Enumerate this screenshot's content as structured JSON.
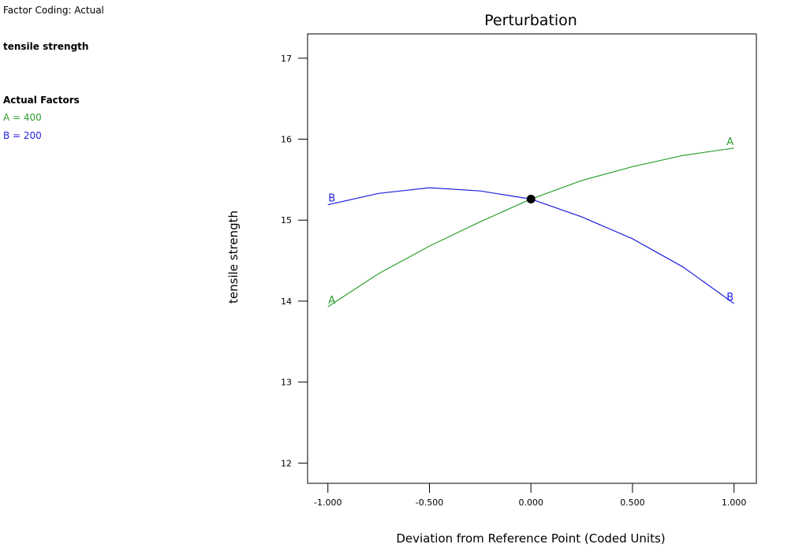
{
  "info_panel": {
    "factor_coding": "Factor Coding: Actual",
    "response": "tensile strength",
    "actual_factors_heading": "Actual Factors",
    "factor_a": "A = 400",
    "factor_b": "B = 200"
  },
  "colors": {
    "factor_a": "#2ca02c",
    "factor_b": "#1f1fdc",
    "axis": "#000000"
  },
  "chart_data": {
    "type": "line",
    "title": "Perturbation",
    "xlabel": "Deviation from Reference Point (Coded Units)",
    "ylabel": "tensile strength",
    "xlim": [
      -1.1,
      1.11
    ],
    "ylim": [
      11.75,
      17.3
    ],
    "xticks": [
      -1,
      -0.5,
      0,
      0.5,
      1
    ],
    "xtick_labels": [
      "-1.000",
      "-0.500",
      "0.000",
      "0.500",
      "1.000"
    ],
    "yticks": [
      12,
      13,
      14,
      15,
      16,
      17
    ],
    "ytick_labels": [
      "12",
      "13",
      "14",
      "15",
      "16",
      "17"
    ],
    "grid": false,
    "series": [
      {
        "name": "A",
        "color": "#2ca02c",
        "x": [
          -1,
          -0.75,
          -0.5,
          -0.25,
          0,
          0.25,
          0.5,
          0.75,
          1
        ],
        "y": [
          13.93,
          14.34,
          14.68,
          14.98,
          15.26,
          15.49,
          15.66,
          15.8,
          15.89
        ]
      },
      {
        "name": "B",
        "color": "#1f1fdc",
        "x": [
          -1,
          -0.75,
          -0.5,
          -0.25,
          0,
          0.25,
          0.5,
          0.75,
          1
        ],
        "y": [
          15.19,
          15.33,
          15.4,
          15.36,
          15.26,
          15.04,
          14.77,
          14.42,
          13.97
        ]
      }
    ],
    "reference_point": {
      "x": 0,
      "y": 15.26
    }
  }
}
